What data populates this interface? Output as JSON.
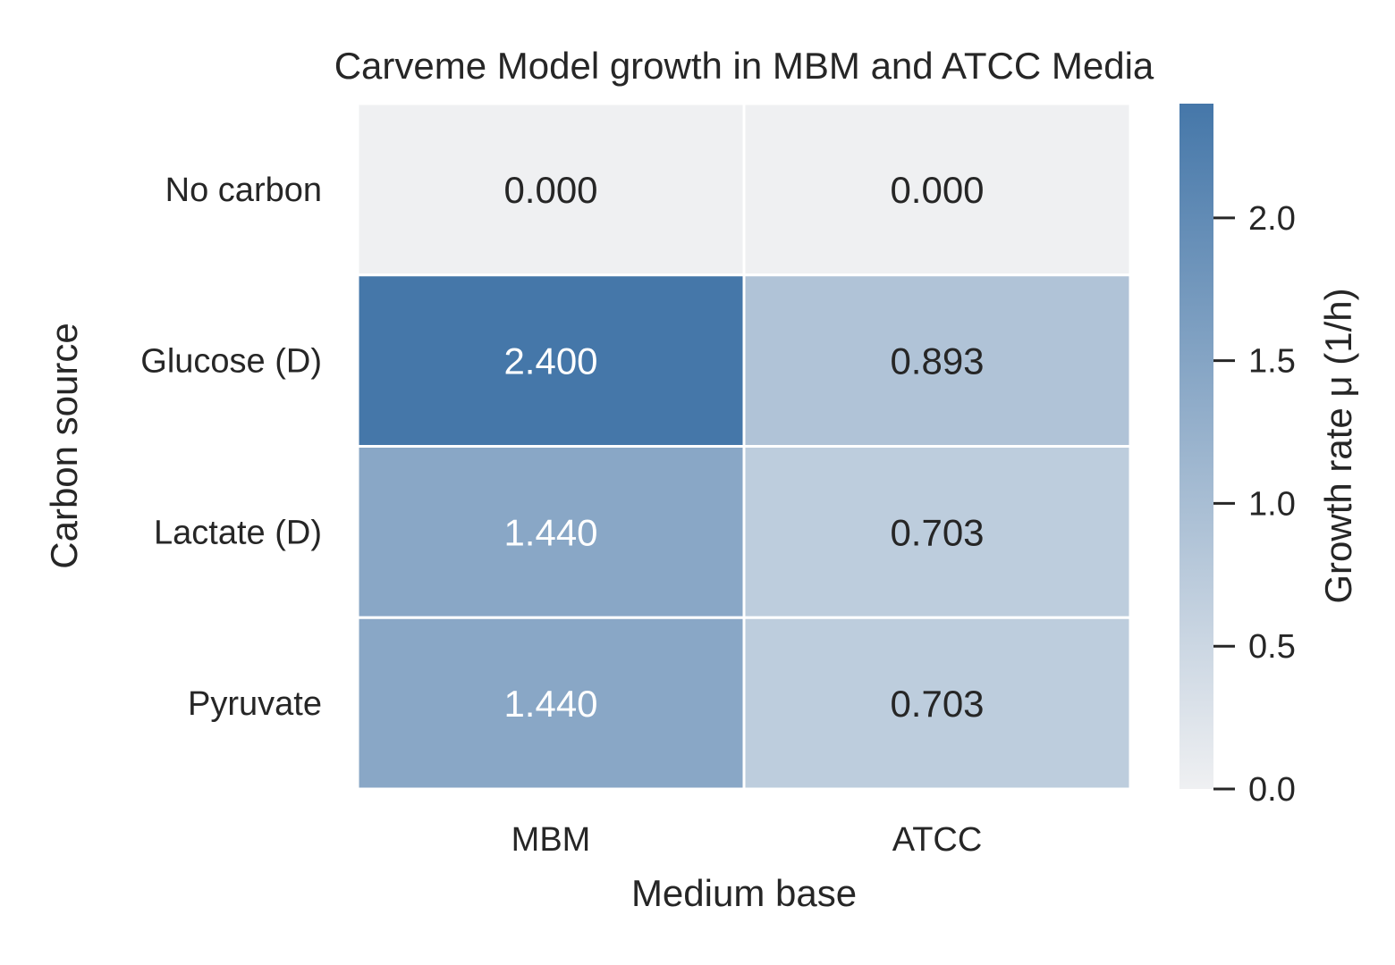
{
  "chart_data": {
    "type": "heatmap",
    "title": "Carveme Model growth in MBM and ATCC Media",
    "xlabel": "Medium base",
    "ylabel": "Carbon source",
    "x_categories": [
      "MBM",
      "ATCC"
    ],
    "y_categories": [
      "No carbon",
      "Glucose (D)",
      "Lactate (D)",
      "Pyruvate"
    ],
    "values": [
      [
        0.0,
        0.0
      ],
      [
        2.4,
        0.893
      ],
      [
        1.44,
        0.703
      ],
      [
        1.44,
        0.703
      ]
    ],
    "value_labels": [
      [
        "0.000",
        "0.000"
      ],
      [
        "2.400",
        "0.893"
      ],
      [
        "1.440",
        "0.703"
      ],
      [
        "1.440",
        "0.703"
      ]
    ],
    "colorbar": {
      "label": "Growth rate μ (1/h)",
      "range": [
        0.0,
        2.4
      ],
      "ticks": [
        0.0,
        0.5,
        1.0,
        1.5,
        2.0
      ],
      "tick_labels": [
        "0.0",
        "0.5",
        "1.0",
        "1.5",
        "2.0"
      ]
    },
    "colors": {
      "low": "#eff0f2",
      "high": "#4577a9"
    }
  }
}
